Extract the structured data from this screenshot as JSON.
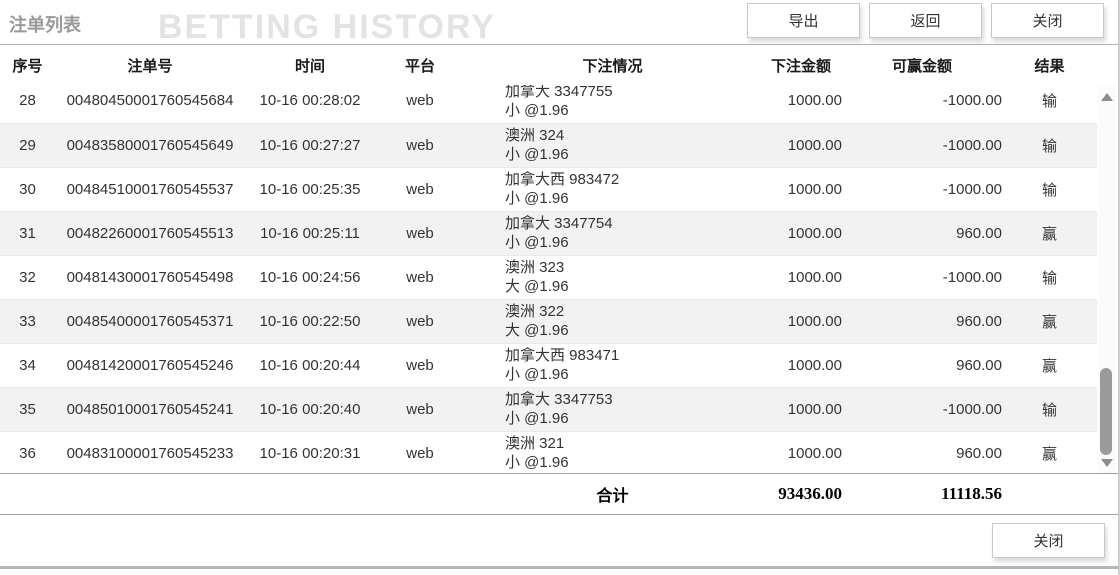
{
  "header": {
    "title": "注单列表",
    "watermark": "BETTING HISTORY",
    "buttons": {
      "export": "导出",
      "back": "返回",
      "close": "关闭"
    }
  },
  "table": {
    "columns": [
      "序号",
      "注单号",
      "时间",
      "平台",
      "下注情况",
      "下注金额",
      "可赢金额",
      "结果"
    ],
    "rows": [
      {
        "seq": "28",
        "bet_no": "00480450001760545684",
        "time": "10-16 00:28:02",
        "platform": "web",
        "detail1": "加拿大 3347755",
        "detail2": "小 @1.96",
        "amount": "1000.00",
        "win": "-1000.00",
        "result": "输"
      },
      {
        "seq": "29",
        "bet_no": "00483580001760545649",
        "time": "10-16 00:27:27",
        "platform": "web",
        "detail1": "澳洲 324",
        "detail2": "小 @1.96",
        "amount": "1000.00",
        "win": "-1000.00",
        "result": "输"
      },
      {
        "seq": "30",
        "bet_no": "00484510001760545537",
        "time": "10-16 00:25:35",
        "platform": "web",
        "detail1": "加拿大西 983472",
        "detail2": "小 @1.96",
        "amount": "1000.00",
        "win": "-1000.00",
        "result": "输"
      },
      {
        "seq": "31",
        "bet_no": "00482260001760545513",
        "time": "10-16 00:25:11",
        "platform": "web",
        "detail1": "加拿大 3347754",
        "detail2": "小 @1.96",
        "amount": "1000.00",
        "win": "960.00",
        "result": "赢"
      },
      {
        "seq": "32",
        "bet_no": "00481430001760545498",
        "time": "10-16 00:24:56",
        "platform": "web",
        "detail1": "澳洲 323",
        "detail2": "大 @1.96",
        "amount": "1000.00",
        "win": "-1000.00",
        "result": "输"
      },
      {
        "seq": "33",
        "bet_no": "00485400001760545371",
        "time": "10-16 00:22:50",
        "platform": "web",
        "detail1": "澳洲 322",
        "detail2": "大 @1.96",
        "amount": "1000.00",
        "win": "960.00",
        "result": "赢"
      },
      {
        "seq": "34",
        "bet_no": "00481420001760545246",
        "time": "10-16 00:20:44",
        "platform": "web",
        "detail1": "加拿大西 983471",
        "detail2": "小 @1.96",
        "amount": "1000.00",
        "win": "960.00",
        "result": "赢"
      },
      {
        "seq": "35",
        "bet_no": "00485010001760545241",
        "time": "10-16 00:20:40",
        "platform": "web",
        "detail1": "加拿大 3347753",
        "detail2": "小 @1.96",
        "amount": "1000.00",
        "win": "-1000.00",
        "result": "输"
      },
      {
        "seq": "36",
        "bet_no": "00483100001760545233",
        "time": "10-16 00:20:31",
        "platform": "web",
        "detail1": "澳洲 321",
        "detail2": "小 @1.96",
        "amount": "1000.00",
        "win": "960.00",
        "result": "赢"
      }
    ],
    "totals": {
      "label": "合计",
      "amount": "93436.00",
      "win": "11118.56"
    }
  },
  "footer": {
    "close_label": "关闭"
  },
  "colors": {
    "row_alt": "#f2f2f2",
    "divider": "#9e9e9e",
    "title_gray": "#999999",
    "watermark_gray": "#e3e3e3",
    "scroll_thumb": "#9a9a9a"
  }
}
